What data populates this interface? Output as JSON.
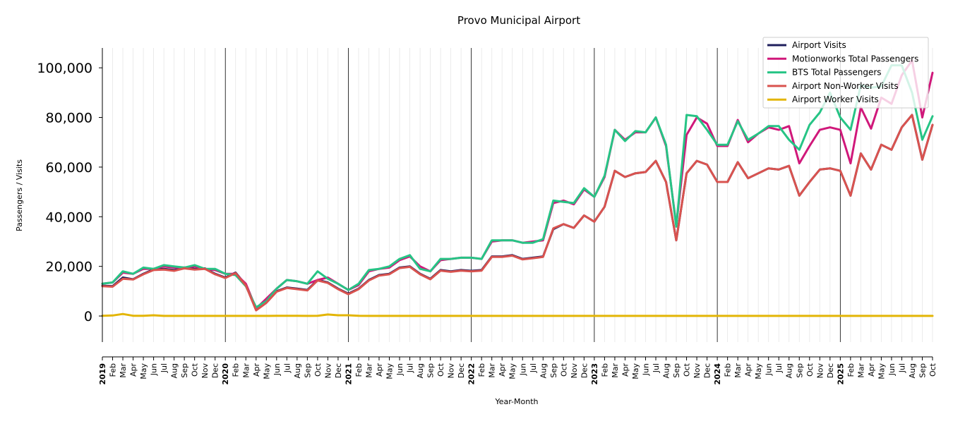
{
  "chart_data": {
    "type": "line",
    "title": "Provo Municipal Airport",
    "xlabel": "Year-Month",
    "ylabel": "Passengers / Visits",
    "ylim": [
      -10500,
      108000
    ],
    "yticks": [
      0,
      20000,
      40000,
      60000,
      80000,
      100000
    ],
    "ytick_labels": [
      "0",
      "20,000",
      "40,000",
      "60,000",
      "80,000",
      "100,000"
    ],
    "grid": "vertical minor lines per month, dark lines at each January",
    "legend_position": "top-right",
    "x": [
      "2019",
      "Feb",
      "Mar",
      "Apr",
      "May",
      "Jun",
      "Jul",
      "Aug",
      "Sep",
      "Oct",
      "Nov",
      "Dec",
      "2020",
      "Feb",
      "Mar",
      "Apr",
      "May",
      "Jun",
      "Jul",
      "Aug",
      "Sep",
      "Oct",
      "Nov",
      "Dec",
      "2021",
      "Feb",
      "Mar",
      "Apr",
      "May",
      "Jun",
      "Jul",
      "Aug",
      "Sep",
      "Oct",
      "Nov",
      "Dec",
      "2022",
      "Feb",
      "Mar",
      "Apr",
      "May",
      "Jun",
      "Jul",
      "Aug",
      "Sep",
      "Oct",
      "Nov",
      "Dec",
      "2023",
      "Feb",
      "Mar",
      "Apr",
      "May",
      "Jun",
      "Jul",
      "Aug",
      "Sep",
      "Oct",
      "Nov",
      "Dec",
      "2024",
      "Feb",
      "Mar",
      "Apr",
      "May",
      "Jun",
      "Jul",
      "Aug",
      "Sep",
      "Oct",
      "Nov",
      "Dec",
      "2025",
      "Feb",
      "Mar",
      "Apr",
      "May",
      "Jun",
      "Jul",
      "Aug",
      "Sep",
      "Oct"
    ],
    "series": [
      {
        "name": "Airport Visits",
        "color": "#1f1f5c",
        "values": [
          12200,
          12000,
          15500,
          14800,
          17000,
          18800,
          19000,
          18500,
          19500,
          19000,
          19200,
          17000,
          15500,
          17500,
          12500,
          2500,
          5500,
          10000,
          11500,
          11000,
          10500,
          14500,
          13500,
          11000,
          9000,
          11000,
          14500,
          16500,
          17000,
          19500,
          20000,
          17000,
          15000,
          18500,
          18000,
          18500,
          18200,
          18500,
          24000,
          24000,
          24500,
          23000,
          23500,
          24000,
          35000,
          37000,
          35500,
          40500,
          38000,
          44000,
          58500,
          56000,
          57500,
          58000,
          62500,
          54000,
          30500,
          57500,
          62500,
          61000,
          54000,
          54000,
          62000,
          55500,
          57500,
          59500,
          59000,
          60500,
          48500,
          54000,
          59000,
          59500,
          58500,
          48500,
          65500,
          59000,
          69000,
          67000,
          76000,
          81000,
          63000,
          77000
        ]
      },
      {
        "name": "Motionworks Total Passengers",
        "color": "#d0187a",
        "values": [
          13000,
          13500,
          17500,
          17000,
          19000,
          19000,
          20000,
          19500,
          19500,
          20000,
          19000,
          18500,
          17000,
          17000,
          13000,
          3000,
          7000,
          11000,
          14500,
          14000,
          13000,
          14500,
          15500,
          13000,
          10500,
          12500,
          18000,
          19000,
          19500,
          22500,
          24000,
          20000,
          18000,
          22500,
          23000,
          23500,
          23500,
          23000,
          30000,
          30500,
          30500,
          29500,
          30000,
          30500,
          45500,
          46500,
          45000,
          51000,
          48000,
          56000,
          75000,
          71000,
          74000,
          74000,
          80000,
          68500,
          36500,
          73000,
          80000,
          77500,
          68500,
          68500,
          79000,
          70000,
          73500,
          76000,
          75000,
          76500,
          61500,
          68500,
          75000,
          76000,
          75000,
          61500,
          84000,
          75500,
          88000,
          85500,
          97000,
          103000,
          80000,
          98000
        ]
      },
      {
        "name": "BTS Total Passengers",
        "color": "#26c485",
        "values": [
          13000,
          13500,
          18000,
          17000,
          19500,
          19000,
          20500,
          20000,
          19500,
          20500,
          19000,
          19000,
          17000,
          16500,
          12000,
          3500,
          6000,
          11000,
          14500,
          14000,
          13000,
          18000,
          15000,
          13000,
          10500,
          13000,
          18500,
          19000,
          20000,
          23000,
          24500,
          19000,
          18000,
          23000,
          23000,
          23500,
          23500,
          23000,
          30500,
          30500,
          30500,
          29500,
          29500,
          31000,
          46500,
          46000,
          45500,
          51500,
          48000,
          56500,
          75000,
          70500,
          74500,
          74000,
          80000,
          69000,
          36000,
          81000,
          80500,
          75000,
          69000,
          69000,
          78500,
          71000,
          73500,
          76500,
          76500,
          71000,
          67000,
          77000,
          82000,
          90000,
          80000,
          75000,
          93000,
          92000,
          92500,
          101000,
          101000,
          90000,
          71000,
          80500
        ]
      },
      {
        "name": "Airport Non-Worker Visits",
        "color": "#d9534f",
        "values": [
          12000,
          11800,
          15000,
          14700,
          16800,
          18500,
          18700,
          18200,
          19200,
          18700,
          19000,
          16800,
          15300,
          17300,
          12300,
          2300,
          5300,
          9800,
          11300,
          10800,
          10300,
          14300,
          13300,
          10800,
          8800,
          10800,
          14300,
          16300,
          16800,
          19300,
          19800,
          16800,
          14800,
          18300,
          17800,
          18300,
          18000,
          18300,
          23800,
          23800,
          24300,
          22800,
          23300,
          23800,
          35300,
          37000,
          35500,
          40500,
          38000,
          44000,
          58500,
          56000,
          57500,
          58000,
          62500,
          54000,
          30500,
          57500,
          62500,
          61000,
          54000,
          54000,
          62000,
          55500,
          57500,
          59500,
          59000,
          60500,
          48500,
          54000,
          59000,
          59500,
          58500,
          48500,
          65500,
          59000,
          69000,
          67000,
          76000,
          81000,
          63000,
          77000
        ]
      },
      {
        "name": "Airport Worker Visits",
        "color": "#e3b505",
        "values": [
          100,
          200,
          800,
          100,
          100,
          300,
          50,
          50,
          50,
          50,
          50,
          50,
          50,
          50,
          50,
          50,
          50,
          100,
          100,
          100,
          50,
          100,
          600,
          300,
          300,
          100,
          50,
          50,
          50,
          50,
          50,
          50,
          50,
          50,
          50,
          50,
          50,
          50,
          50,
          50,
          50,
          50,
          50,
          50,
          50,
          50,
          50,
          50,
          50,
          50,
          50,
          50,
          50,
          50,
          50,
          50,
          50,
          50,
          50,
          50,
          50,
          50,
          50,
          50,
          50,
          50,
          50,
          50,
          50,
          50,
          50,
          50,
          50,
          50,
          50,
          50,
          50,
          50,
          50,
          50,
          50,
          50
        ]
      }
    ]
  }
}
